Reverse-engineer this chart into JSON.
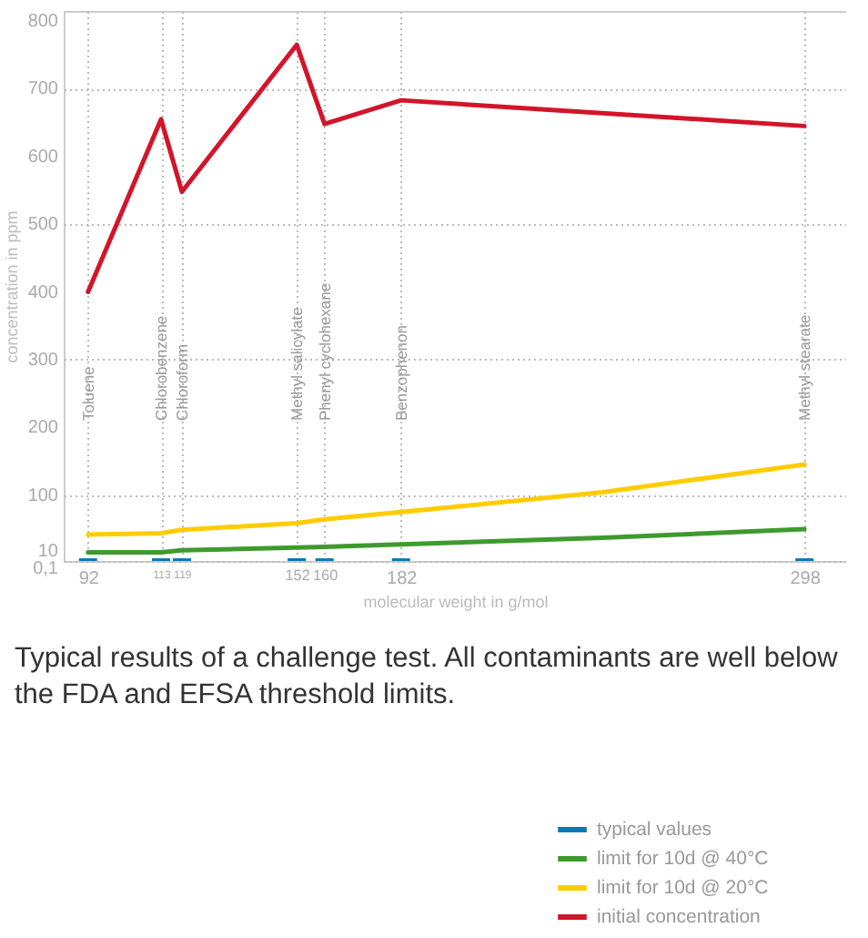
{
  "chart_data": {
    "type": "line",
    "xlabel": "molecular weight in g/mol",
    "ylabel": "concentration in ppm",
    "xlim": [
      85,
      310
    ],
    "ylim": [
      0.1,
      815
    ],
    "xticks": [
      92,
      113,
      119,
      152,
      160,
      182,
      298
    ],
    "yticks": [
      {
        "value": 0.1,
        "label": "0,1"
      },
      10,
      100,
      200,
      300,
      400,
      500,
      600,
      700,
      800
    ],
    "grid": true,
    "legend": "bottom right",
    "series": [
      {
        "name": "typical values",
        "type": "bar",
        "color": "#0a78b4",
        "x": [
          92,
          113,
          119,
          152,
          160,
          182,
          298
        ],
        "values": [
          4,
          4,
          4,
          4,
          4,
          4,
          4
        ]
      },
      {
        "name": "limit for 10d @ 40°C",
        "color": "#3e9a2e",
        "x": [
          92,
          113,
          119,
          152,
          160,
          182,
          240,
          298
        ],
        "values": [
          13,
          13,
          16,
          20,
          21,
          25,
          35,
          48
        ]
      },
      {
        "name": "limit for 10d @ 20°C",
        "color": "#ffcc00",
        "x": [
          92,
          113,
          119,
          152,
          160,
          182,
          240,
          298
        ],
        "values": [
          40,
          42,
          47,
          57,
          63,
          74,
          104,
          145
        ]
      },
      {
        "name": "initial concentration",
        "color": "#d3142a",
        "x": [
          92,
          113,
          119,
          152,
          160,
          182,
          298
        ],
        "values": [
          400,
          655,
          548,
          765,
          648,
          683,
          645
        ]
      }
    ],
    "annotations": [
      "Toluene",
      "Chlorobenzene",
      "Chloroform",
      "Methyl salicylate",
      "Phenyl cyclohexane",
      "Benzophenon",
      "Methyl stearate",
      "Typical results of a challenge test. All contaminants are well below the FDA and EFSA threshold limits."
    ]
  }
}
